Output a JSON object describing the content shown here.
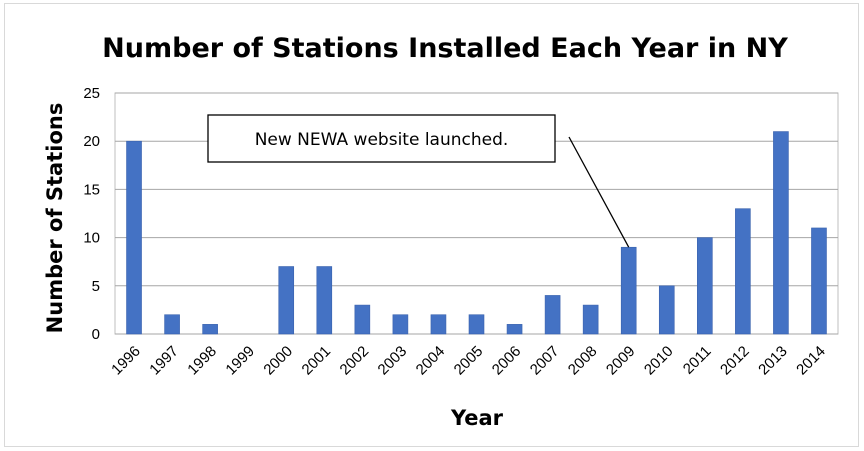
{
  "chart_data": {
    "type": "bar",
    "title": "Number of Stations Installed Each Year in NY",
    "xlabel": "Year",
    "ylabel": "Number of Stations",
    "categories": [
      "1996",
      "1997",
      "1998",
      "1999",
      "2000",
      "2001",
      "2002",
      "2003",
      "2004",
      "2005",
      "2006",
      "2007",
      "2008",
      "2009",
      "2010",
      "2011",
      "2012",
      "2013",
      "2014"
    ],
    "values": [
      20,
      2,
      1,
      0,
      7,
      7,
      3,
      2,
      2,
      2,
      1,
      4,
      3,
      9,
      5,
      10,
      13,
      21,
      11
    ],
    "ylim": [
      0,
      25
    ],
    "yticks": [
      "0",
      "5",
      "10",
      "15",
      "20",
      "25"
    ],
    "grid": true,
    "legend": "none",
    "bar_color": "#4472c4",
    "annotation": {
      "text": "New NEWA website launched.",
      "target_category": "2009"
    }
  }
}
